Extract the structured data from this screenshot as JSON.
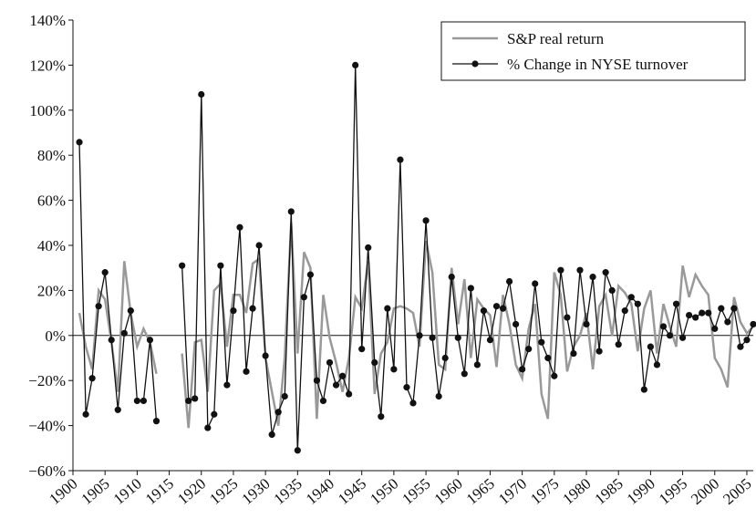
{
  "chart_data": {
    "type": "line",
    "x": [
      1901,
      1902,
      1903,
      1904,
      1905,
      1906,
      1907,
      1908,
      1909,
      1910,
      1911,
      1912,
      1913,
      1914,
      1915,
      1916,
      1917,
      1918,
      1919,
      1920,
      1921,
      1922,
      1923,
      1924,
      1925,
      1926,
      1927,
      1928,
      1929,
      1930,
      1931,
      1932,
      1933,
      1934,
      1935,
      1936,
      1937,
      1938,
      1939,
      1940,
      1941,
      1942,
      1943,
      1944,
      1945,
      1946,
      1947,
      1948,
      1949,
      1950,
      1951,
      1952,
      1953,
      1954,
      1955,
      1956,
      1957,
      1958,
      1959,
      1960,
      1961,
      1962,
      1963,
      1964,
      1965,
      1966,
      1967,
      1968,
      1969,
      1970,
      1971,
      1972,
      1973,
      1974,
      1975,
      1976,
      1977,
      1978,
      1979,
      1980,
      1981,
      1982,
      1983,
      1984,
      1985,
      1986,
      1987,
      1988,
      1989,
      1990,
      1991,
      1992,
      1993,
      1994,
      1995,
      1996,
      1997,
      1998,
      1999,
      2000,
      2001,
      2002,
      2003,
      2004,
      2005,
      2006
    ],
    "series": [
      {
        "name": "S&P real return",
        "color": "#999999",
        "marker": false,
        "values": [
          10,
          -5,
          -15,
          20,
          16,
          -3,
          -25,
          33,
          10,
          -5,
          3,
          -3,
          -17,
          null,
          null,
          null,
          -8,
          -41,
          -3,
          -2,
          -25,
          20,
          23,
          -5,
          18,
          18,
          10,
          32,
          34,
          -10,
          -25,
          -40,
          -10,
          50,
          -8,
          37,
          30,
          -37,
          18,
          -1,
          -12,
          -25,
          -10,
          17,
          12,
          33,
          -26,
          -8,
          -3,
          12,
          13,
          12,
          10,
          -5,
          42,
          28,
          -13,
          -15,
          30,
          5,
          25,
          -10,
          16,
          12,
          9,
          -14,
          18,
          5,
          -13,
          -19,
          3,
          14,
          -26,
          -37,
          28,
          18,
          -16,
          -5,
          0,
          10,
          -15,
          13,
          18,
          0,
          22,
          19,
          14,
          -7,
          12,
          20,
          -8,
          14,
          4,
          -5,
          31,
          17,
          27,
          22,
          18,
          -10,
          -15,
          -23,
          17,
          6,
          1,
          4
        ]
      },
      {
        "name": "% Change in NYSE turnover",
        "color": "#111111",
        "marker": true,
        "values": [
          85.8,
          -35,
          -19,
          13,
          28,
          -2,
          -33,
          1,
          11,
          -29,
          -29,
          -2,
          -38,
          null,
          null,
          null,
          31,
          -29,
          -28,
          107,
          -41,
          -35,
          31,
          -22,
          11,
          48,
          -16,
          12,
          40,
          -9,
          -44,
          -34,
          -27,
          55,
          -51,
          17,
          27,
          -20,
          -29,
          -12,
          -22,
          -18,
          -26,
          120,
          -6,
          39,
          -12,
          -36,
          12,
          -15,
          78,
          -23,
          -30,
          0,
          51,
          -1,
          -27,
          -10,
          26,
          -1,
          -17,
          21,
          -13,
          11,
          -2,
          13,
          12,
          24,
          5,
          -15,
          -6,
          23,
          -3,
          -10,
          -18,
          29,
          8,
          -8,
          29,
          5,
          26,
          -7,
          28,
          20,
          -4,
          11,
          17,
          14,
          -24,
          -5,
          -13,
          4,
          0,
          14,
          -1,
          9,
          8,
          10,
          10,
          3,
          12,
          6,
          12,
          -5,
          -2,
          5
        ]
      }
    ],
    "xlim": [
      1900,
      2006
    ],
    "xticks": [
      1900,
      1905,
      1910,
      1915,
      1920,
      1925,
      1930,
      1935,
      1940,
      1945,
      1950,
      1955,
      1960,
      1965,
      1970,
      1975,
      1980,
      1985,
      1990,
      1995,
      2000,
      2005
    ],
    "ylim": [
      -60,
      140
    ],
    "yticks": [
      {
        "value": -60,
        "label": "−60%"
      },
      {
        "value": -40,
        "label": "−40%"
      },
      {
        "value": -20,
        "label": "−20%"
      },
      {
        "value": 0,
        "label": "0%"
      },
      {
        "value": 20,
        "label": "20%"
      },
      {
        "value": 40,
        "label": "40%"
      },
      {
        "value": 60,
        "label": "60%"
      },
      {
        "value": 80,
        "label": "80%"
      },
      {
        "value": 100,
        "label": "100%"
      },
      {
        "value": 120,
        "label": "120%"
      },
      {
        "value": 140,
        "label": "140%"
      }
    ],
    "legend": "top-right"
  }
}
